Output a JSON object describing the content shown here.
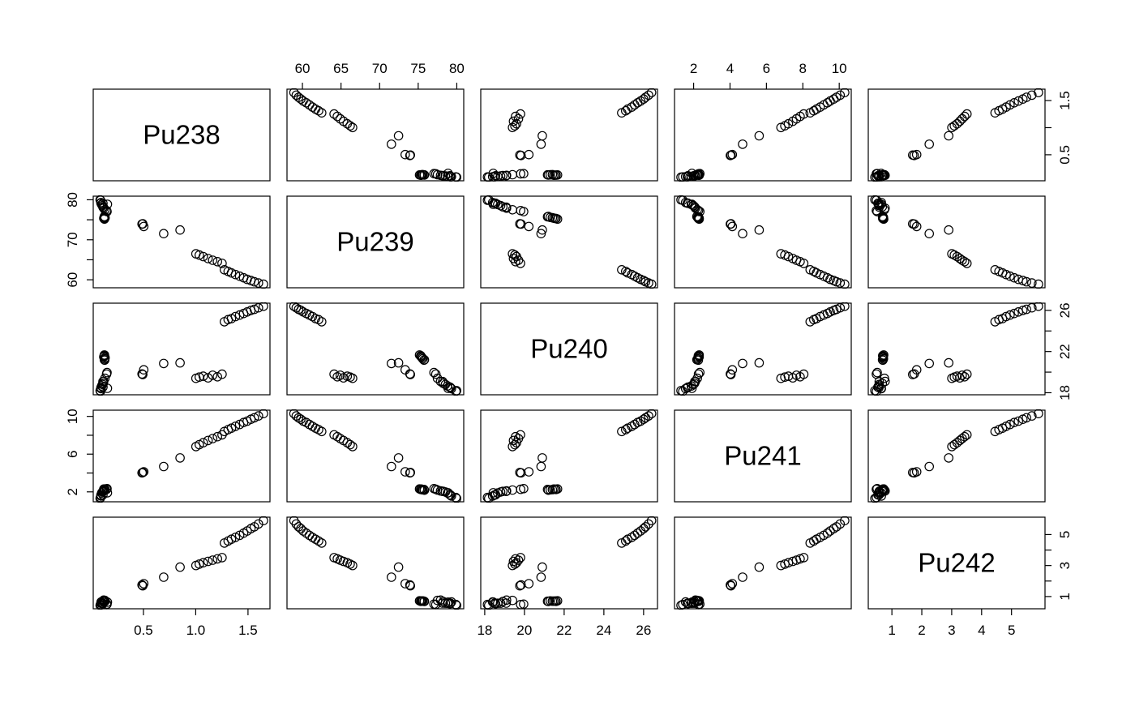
{
  "figure": {
    "background_color": "#ffffff",
    "stroke_color": "#000000"
  },
  "chart_data": {
    "type": "scatter",
    "subtype": "pairs-matrix",
    "grid": false,
    "point_style": {
      "marker": "open-circle",
      "color": "#000000"
    },
    "variables": [
      "Pu238",
      "Pu239",
      "Pu240",
      "Pu241",
      "Pu242"
    ],
    "axes": {
      "Pu238": {
        "range": [
          0.02,
          1.71
        ],
        "ticks": [
          0.5,
          1.0,
          1.5
        ],
        "tick_labels": [
          "0.5",
          "1.0",
          "1.5"
        ],
        "side_labels": [
          {
            "value": 0.5,
            "label": "0.5"
          },
          {
            "value": 1.5,
            "label": "1.5"
          }
        ]
      },
      "Pu239": {
        "range": [
          58.0,
          80.9
        ],
        "ticks": [
          60,
          65,
          70,
          75,
          80
        ],
        "tick_labels": [
          "60",
          "65",
          "70",
          "75",
          "80"
        ],
        "side_labels": [
          {
            "value": 60,
            "label": "60"
          },
          {
            "value": 70,
            "label": "70"
          },
          {
            "value": 80,
            "label": "80"
          }
        ]
      },
      "Pu240": {
        "range": [
          17.8,
          26.7
        ],
        "ticks": [
          18,
          20,
          22,
          24,
          26
        ],
        "tick_labels": [
          "18",
          "20",
          "22",
          "24",
          "26"
        ],
        "side_labels": [
          {
            "value": 18,
            "label": "18"
          },
          {
            "value": 22,
            "label": "22"
          },
          {
            "value": 26,
            "label": "26"
          }
        ]
      },
      "Pu241": {
        "range": [
          0.95,
          10.66
        ],
        "ticks": [
          2,
          4,
          6,
          8,
          10
        ],
        "tick_labels": [
          "2",
          "4",
          "6",
          "8",
          "10"
        ],
        "side_labels": [
          {
            "value": 2,
            "label": "2"
          },
          {
            "value": 6,
            "label": "6"
          },
          {
            "value": 10,
            "label": "10"
          }
        ]
      },
      "Pu242": {
        "range": [
          0.21,
          6.12
        ],
        "ticks": [
          1,
          2,
          3,
          4,
          5
        ],
        "tick_labels": [
          "1",
          "2",
          "3",
          "4",
          "5"
        ],
        "side_labels": [
          {
            "value": 1,
            "label": "1"
          },
          {
            "value": 3,
            "label": "3"
          },
          {
            "value": 5,
            "label": "5"
          }
        ]
      }
    },
    "axis_sides": {
      "bottom_columns": [
        0,
        2,
        4
      ],
      "top_columns": [
        1,
        3
      ],
      "left_rows": [
        1,
        3
      ],
      "right_rows": [
        0,
        2,
        4
      ]
    },
    "observations": [
      [
        0.126,
        75.804,
        21.204,
        2.18,
        0.686
      ],
      [
        0.133,
        75.515,
        21.408,
        2.24,
        0.704
      ],
      [
        0.127,
        75.175,
        21.668,
        2.305,
        0.725
      ],
      [
        0.156,
        78.872,
        18.428,
        1.906,
        0.638
      ],
      [
        0.503,
        73.317,
        20.223,
        4.128,
        1.829
      ],
      [
        0.113,
        79.116,
        18.548,
        1.69,
        0.533
      ],
      [
        0.129,
        75.751,
        21.162,
        2.26,
        0.698
      ],
      [
        0.124,
        75.326,
        21.557,
        2.282,
        0.711
      ],
      [
        0.487,
        73.923,
        19.827,
        4.017,
        1.746
      ],
      [
        0.694,
        71.529,
        20.837,
        4.692,
        2.248
      ],
      [
        0.152,
        77.041,
        19.96,
        2.339,
        0.508
      ],
      [
        0.116,
        78.244,
        18.912,
        2.05,
        0.678
      ],
      [
        0.113,
        78.166,
        19.082,
        2.062,
        0.577
      ],
      [
        0.094,
        79.186,
        18.493,
        1.662,
        0.565
      ],
      [
        0.125,
        75.33,
        21.594,
        2.258,
        0.693
      ],
      [
        0.494,
        73.99,
        19.769,
        4.051,
        1.696
      ],
      [
        0.121,
        75.393,
        21.478,
        2.302,
        0.706
      ],
      [
        0.101,
        78.803,
        18.655,
        1.877,
        0.564
      ],
      [
        0.09,
        79.88,
        18.14,
        1.405,
        0.485
      ],
      [
        0.086,
        79.98,
        18.2,
        1.305,
        0.432
      ],
      [
        0.148,
        77.29,
        19.81,
        2.27,
        0.48
      ],
      [
        0.095,
        79.3,
        18.4,
        1.56,
        0.647
      ],
      [
        0.108,
        78.53,
        18.8,
        1.99,
        0.572
      ],
      [
        0.12,
        77.9,
        19.1,
        2.1,
        0.77
      ],
      [
        0.13,
        75.6,
        21.3,
        2.22,
        0.718
      ],
      [
        0.85,
        72.45,
        20.9,
        5.6,
        2.9
      ],
      [
        1.002,
        66.5,
        19.4,
        6.8,
        3.005
      ],
      [
        1.034,
        66.18,
        19.52,
        7.01,
        3.09
      ],
      [
        1.072,
        65.8,
        19.6,
        7.21,
        3.18
      ],
      [
        1.118,
        65.32,
        19.45,
        7.45,
        3.272
      ],
      [
        1.162,
        64.9,
        19.7,
        7.65,
        3.35
      ],
      [
        1.208,
        64.52,
        19.55,
        7.85,
        3.432
      ],
      [
        1.252,
        64.1,
        19.8,
        8.05,
        3.51
      ],
      [
        1.274,
        62.5,
        24.9,
        8.4,
        4.45
      ],
      [
        1.31,
        62.1,
        25.1,
        8.6,
        4.58
      ],
      [
        1.342,
        61.7,
        25.2,
        8.75,
        4.7
      ],
      [
        1.38,
        61.3,
        25.4,
        8.95,
        4.82
      ],
      [
        1.42,
        60.9,
        25.55,
        9.15,
        4.95
      ],
      [
        1.458,
        60.5,
        25.7,
        9.35,
        5.09
      ],
      [
        1.492,
        60.1,
        25.85,
        9.5,
        5.23
      ],
      [
        1.528,
        59.8,
        26.0,
        9.7,
        5.38
      ],
      [
        1.56,
        59.5,
        26.1,
        9.85,
        5.5
      ],
      [
        1.6,
        59.2,
        26.25,
        10.05,
        5.68
      ],
      [
        1.648,
        58.9,
        26.4,
        10.3,
        5.9
      ],
      [
        0.132,
        77.5,
        19.4,
        2.2,
        0.75
      ]
    ]
  }
}
